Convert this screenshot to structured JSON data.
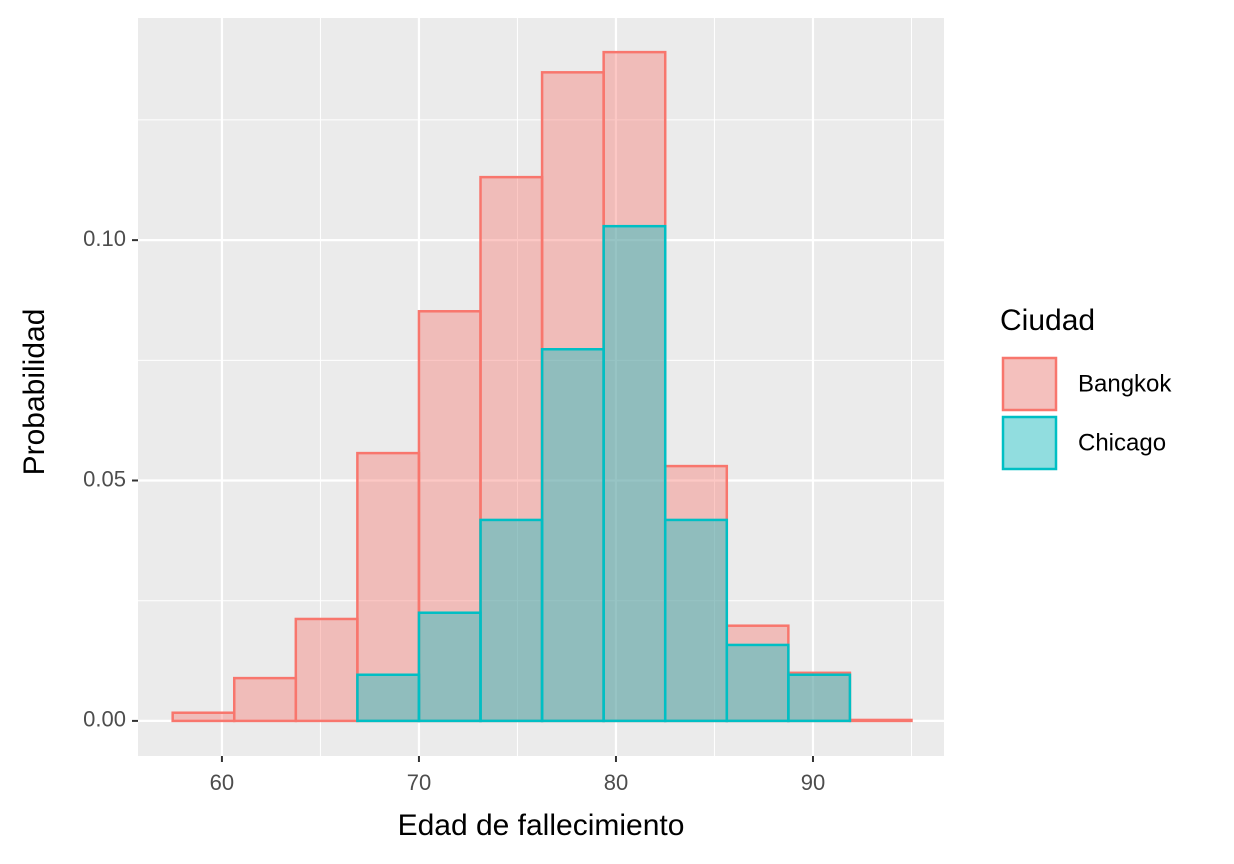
{
  "chart_data": {
    "type": "histogram",
    "x_label": "Edad de fallecimiento",
    "y_label": "Probabilidad",
    "legend_title": "Ciudad",
    "legend_position": "right",
    "grid": true,
    "bins": [
      57.5,
      60.625,
      63.75,
      66.875,
      70,
      73.125,
      76.25,
      79.375,
      82.5,
      85.625,
      88.75,
      91.875,
      95
    ],
    "series": [
      {
        "name": "Bangkok",
        "color": "#F8766D",
        "values": [
          0.0017,
          0.0089,
          0.0212,
          0.0557,
          0.0852,
          0.1131,
          0.1349,
          0.1391,
          0.053,
          0.0198,
          0.01,
          0.0002
        ]
      },
      {
        "name": "Chicago",
        "color": "#00BFC4",
        "values": [
          0,
          0,
          0,
          0.0096,
          0.0225,
          0.0418,
          0.0773,
          0.1029,
          0.0418,
          0.0158,
          0.0096,
          0
        ]
      }
    ],
    "fill_opacity": 0.4,
    "xlim": [
      55.74,
      96.65
    ],
    "ylim": [
      -0.0073,
      0.1462
    ],
    "xticks": [
      60,
      70,
      80,
      90
    ],
    "yticks": [
      {
        "value": 0,
        "label": "0.00"
      },
      {
        "value": 0.05,
        "label": "0.05"
      },
      {
        "value": 0.1,
        "label": "0.10"
      }
    ]
  }
}
